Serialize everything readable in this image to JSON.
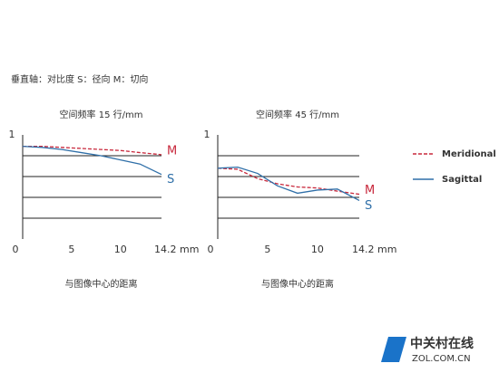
{
  "note": "垂直轴：对比度 S：径向 M：切向",
  "legend": [
    {
      "name": "Meridional",
      "color": "#c8283c",
      "dashed": true
    },
    {
      "name": "Sagittal",
      "color": "#2f6fa8",
      "dashed": false
    }
  ],
  "watermark": {
    "title": "中关村在线",
    "url": "ZOL.COM.CN"
  },
  "chart_data": [
    {
      "type": "line",
      "title": "空间频率 15 行/mm",
      "x_label": "与图像中心的距离",
      "x": [
        0,
        2,
        4,
        6,
        8,
        10,
        12,
        14.2
      ],
      "series": [
        {
          "label": "M",
          "color": "#c8283c",
          "dashed": true,
          "values": [
            0.89,
            0.89,
            0.88,
            0.87,
            0.86,
            0.85,
            0.83,
            0.81
          ]
        },
        {
          "label": "S",
          "color": "#2f6fa8",
          "dashed": false,
          "values": [
            0.89,
            0.88,
            0.86,
            0.83,
            0.8,
            0.76,
            0.72,
            0.62
          ]
        }
      ],
      "xlim": [
        0,
        14.2
      ],
      "ylim": [
        0,
        1
      ],
      "xticks": [
        0,
        5,
        10,
        {
          "value": 14.2,
          "label": "14.2 mm"
        }
      ],
      "yticks": [
        1
      ],
      "grid_lines": [
        0.2,
        0.4,
        0.6,
        0.8
      ]
    },
    {
      "type": "line",
      "title": "空间频率 45 行/mm",
      "x_label": "与图像中心的距离",
      "x": [
        0,
        2,
        4,
        6,
        8,
        10,
        12,
        14.2
      ],
      "series": [
        {
          "label": "M",
          "color": "#c8283c",
          "dashed": true,
          "values": [
            0.68,
            0.67,
            0.58,
            0.53,
            0.5,
            0.49,
            0.46,
            0.43
          ]
        },
        {
          "label": "S",
          "color": "#2f6fa8",
          "dashed": false,
          "values": [
            0.68,
            0.69,
            0.63,
            0.51,
            0.44,
            0.47,
            0.48,
            0.37
          ]
        }
      ],
      "xlim": [
        0,
        14.2
      ],
      "ylim": [
        0,
        1
      ],
      "xticks": [
        0,
        5,
        10,
        {
          "value": 14.2,
          "label": "14.2 mm"
        }
      ],
      "yticks": [
        1
      ],
      "grid_lines": [
        0.2,
        0.4,
        0.6,
        0.8
      ]
    }
  ]
}
